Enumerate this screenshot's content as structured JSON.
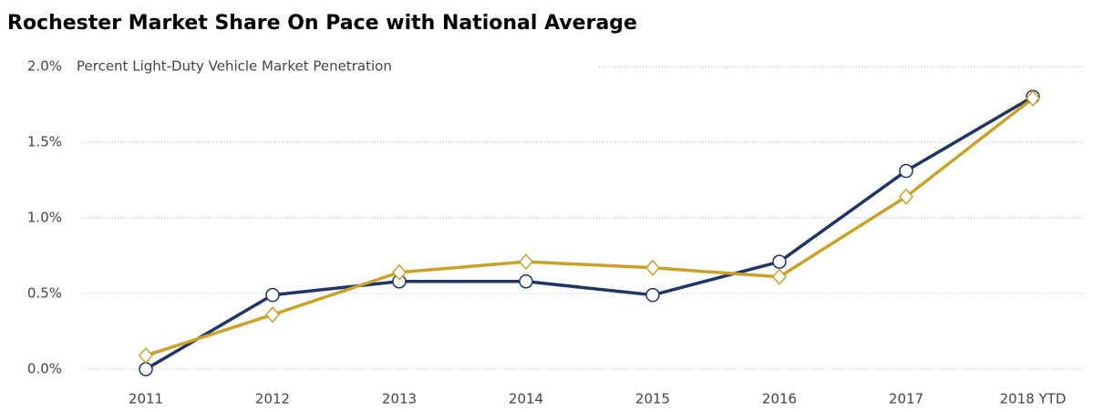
{
  "chart_data": {
    "type": "line",
    "title": "Rochester Market Share On Pace with National Average",
    "subtitle": "Percent Light-Duty Vehicle Market Penetration",
    "categories": [
      "2011",
      "2012",
      "2013",
      "2014",
      "2015",
      "2016",
      "2017",
      "2018 YTD"
    ],
    "series": [
      {
        "color": "#1f3566",
        "marker": "circle",
        "values": [
          0.0,
          0.49,
          0.58,
          0.58,
          0.49,
          0.71,
          1.31,
          1.8
        ]
      },
      {
        "color": "#c9a227",
        "marker": "diamond",
        "values": [
          0.09,
          0.36,
          0.64,
          0.71,
          0.67,
          0.61,
          1.14,
          1.79
        ]
      }
    ],
    "ylim": [
      0,
      2.0
    ],
    "yticks": [
      {
        "value": 0,
        "label": "0.0%"
      },
      {
        "value": 0.5,
        "label": "0.5%"
      },
      {
        "value": 1.0,
        "label": "1.0%"
      },
      {
        "value": 1.5,
        "label": "1.5%"
      },
      {
        "value": 2.0,
        "label": "2.0%"
      }
    ],
    "grid": true
  }
}
